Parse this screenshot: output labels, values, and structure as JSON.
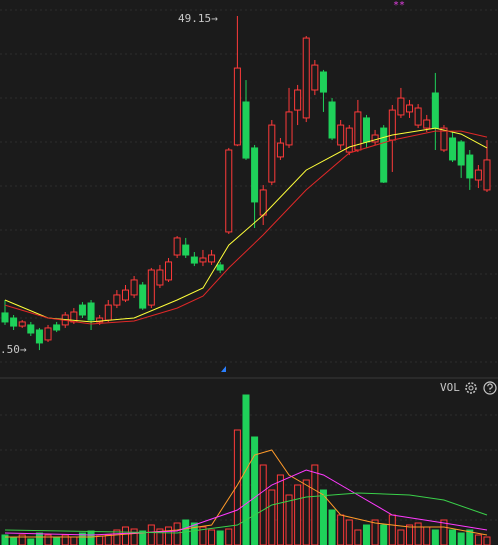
{
  "chart_data": [
    {
      "type": "candlestick",
      "xlim": [
        -0.58,
        57.28
      ],
      "ylim": [
        30,
        50
      ],
      "up_color": "#ff3a3a",
      "down_color": "#1fd15a",
      "open": [
        33.31,
        33.04,
        32.61,
        32.67,
        32.4,
        31.87,
        32.67,
        32.67,
        32.83,
        33.73,
        33.84,
        32.83,
        32.93,
        33.73,
        34.0,
        34.27,
        34.8,
        33.73,
        34.8,
        35.07,
        36.4,
        36.93,
        36.29,
        36.03,
        36.03,
        35.87,
        37.63,
        42.27,
        44.56,
        42.11,
        38.53,
        40.29,
        41.63,
        42.27,
        44.13,
        43.71,
        45.2,
        46.16,
        44.56,
        42.27,
        41.89,
        42.0,
        43.71,
        42.43,
        43.17,
        42.53,
        43.87,
        44.03,
        43.33,
        43.17,
        45.04,
        42.0,
        42.64,
        42.43,
        41.73,
        40.4,
        39.87
      ],
      "close": [
        32.83,
        32.61,
        32.83,
        32.24,
        31.71,
        32.51,
        32.4,
        33.2,
        33.36,
        33.2,
        32.93,
        33.04,
        33.73,
        34.27,
        34.53,
        35.07,
        33.57,
        35.6,
        35.6,
        36.03,
        37.31,
        36.4,
        35.97,
        36.24,
        36.4,
        35.6,
        42.0,
        46.37,
        41.57,
        39.23,
        39.87,
        43.33,
        42.37,
        44.03,
        45.2,
        47.97,
        46.53,
        45.09,
        42.64,
        43.33,
        43.17,
        44.03,
        42.43,
        42.8,
        40.29,
        44.13,
        44.77,
        44.4,
        44.24,
        43.6,
        43.17,
        43.17,
        41.47,
        41.2,
        40.51,
        40.93,
        41.47
      ],
      "high": [
        34.0,
        33.2,
        32.93,
        32.83,
        32.51,
        32.67,
        32.83,
        33.36,
        33.57,
        33.89,
        34.0,
        33.2,
        34.0,
        34.53,
        34.8,
        35.28,
        34.96,
        35.71,
        35.87,
        36.24,
        37.41,
        37.31,
        36.56,
        36.67,
        36.67,
        36.03,
        42.11,
        49.15,
        45.73,
        42.27,
        40.13,
        43.6,
        42.64,
        45.31,
        45.47,
        48.08,
        46.8,
        46.27,
        44.77,
        43.6,
        43.33,
        44.67,
        43.87,
        43.07,
        43.33,
        44.4,
        45.31,
        44.67,
        44.45,
        43.87,
        46.11,
        43.33,
        42.96,
        42.53,
        42.0,
        41.2,
        42.53
      ],
      "low": [
        32.67,
        32.4,
        32.51,
        32.08,
        31.33,
        31.76,
        32.29,
        32.51,
        32.72,
        33.04,
        32.4,
        32.67,
        32.83,
        33.57,
        33.89,
        34.11,
        33.47,
        33.57,
        34.64,
        34.96,
        36.24,
        36.24,
        35.81,
        35.81,
        35.87,
        35.44,
        37.52,
        42.21,
        41.47,
        37.84,
        38.0,
        40.13,
        41.47,
        42.11,
        43.33,
        43.49,
        44.93,
        44.03,
        42.53,
        42.0,
        41.73,
        41.89,
        42.11,
        42.27,
        40.24,
        40.83,
        43.71,
        43.71,
        43.17,
        42.96,
        42.0,
        41.89,
        41.36,
        40.51,
        39.87,
        39.97,
        39.76
      ],
      "lines": [
        {
          "color": "#ffff3a",
          "x": [
            0,
            5,
            10,
            15,
            20,
            23,
            26,
            30,
            35,
            40,
            45,
            50,
            53,
            56
          ],
          "values": [
            34.0,
            33.04,
            32.83,
            33.04,
            34.0,
            34.64,
            36.93,
            38.53,
            40.93,
            42.16,
            42.8,
            43.17,
            42.85,
            42.11
          ]
        },
        {
          "color": "#e02828",
          "x": [
            0,
            5,
            10,
            15,
            20,
            23,
            26,
            30,
            35,
            40,
            45,
            50,
            53,
            56
          ],
          "values": [
            33.73,
            33.04,
            32.72,
            32.88,
            33.57,
            34.21,
            35.71,
            37.47,
            39.87,
            41.84,
            42.53,
            43.01,
            43.01,
            42.69
          ]
        }
      ],
      "annotations": [
        "49.15→",
        ".50→",
        "**"
      ]
    },
    {
      "type": "volume",
      "title": "VOL",
      "xlim": [
        -0.58,
        57.28
      ],
      "ylim": [
        0,
        160
      ],
      "values": [
        10,
        8,
        10,
        6,
        12,
        10,
        8,
        10,
        8,
        12,
        14,
        9,
        10,
        15,
        18,
        16,
        14,
        20,
        16,
        18,
        22,
        25,
        22,
        18,
        15,
        14,
        16,
        115,
        150,
        108,
        80,
        55,
        70,
        50,
        60,
        65,
        80,
        55,
        35,
        30,
        25,
        15,
        20,
        25,
        20,
        30,
        15,
        20,
        22,
        18,
        15,
        25,
        15,
        12,
        15,
        10,
        8
      ],
      "lines": [
        {
          "color": "#ff9a2a",
          "x": [
            0,
            10,
            20,
            24,
            27,
            29,
            31,
            33,
            35,
            37,
            39,
            43,
            47,
            51,
            56
          ],
          "values": [
            8,
            8,
            15,
            20,
            60,
            90,
            95,
            70,
            60,
            50,
            30,
            22,
            18,
            18,
            10
          ]
        },
        {
          "color": "#ff3aff",
          "x": [
            0,
            10,
            20,
            27,
            31,
            35,
            37,
            41,
            45,
            51,
            56
          ],
          "values": [
            12,
            10,
            14,
            35,
            60,
            75,
            70,
            50,
            30,
            22,
            15
          ]
        },
        {
          "color": "#3ad04a",
          "x": [
            0,
            20,
            27,
            31,
            35,
            41,
            47,
            51,
            56
          ],
          "values": [
            15,
            12,
            20,
            40,
            48,
            52,
            50,
            45,
            30
          ]
        }
      ]
    }
  ]
}
